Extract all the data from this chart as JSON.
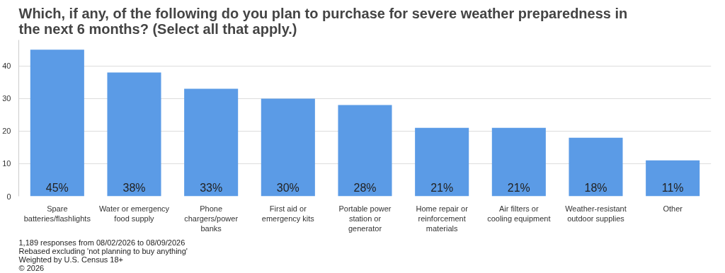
{
  "chart_data": {
    "type": "bar",
    "title": "Which, if any, of the following do you plan to purchase for severe weather preparedness in the next 6 months? (Select all that apply.)",
    "categories": [
      "Spare batteries/flashlights",
      "Water or emergency food supply",
      "Phone chargers/power banks",
      "First aid or emergency kits",
      "Portable power station or generator",
      "Home repair or reinforcement materials",
      "Air filters or cooling equipment",
      "Weather-resistant outdoor supplies",
      "Other"
    ],
    "values": [
      45,
      38,
      33,
      30,
      28,
      21,
      21,
      18,
      11
    ],
    "value_labels": [
      "45%",
      "38%",
      "33%",
      "30%",
      "28%",
      "21%",
      "21%",
      "18%",
      "11%"
    ],
    "color": "#5b9be6",
    "ylim": [
      0,
      48
    ],
    "yticks": [
      0,
      10,
      20,
      30,
      40
    ],
    "grid": "y",
    "annotations": [
      "1,189 responses from 08/02/2026 to 08/09/2026",
      "Rebased excluding 'not planning to buy anything'",
      "Weighted by U.S. Census 18+",
      "© 2026"
    ]
  }
}
